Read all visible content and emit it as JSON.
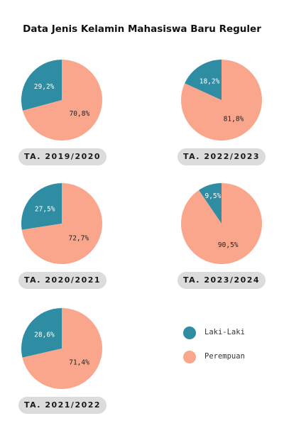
{
  "chart_data": {
    "type": "pie",
    "title": "Data Jenis Kelamin Mahasiswa Baru Reguler",
    "legend": {
      "placement": "bottom-right",
      "items": [
        {
          "name": "Laki-Laki",
          "color": "#2e8da3"
        },
        {
          "name": "Perempuan",
          "color": "#f9a68c"
        }
      ]
    },
    "charts": [
      {
        "label": "TA. 2019/2020",
        "slices": [
          {
            "name": "Laki-Laki",
            "value": 29.2,
            "text": "29,2%"
          },
          {
            "name": "Perempuan",
            "value": 70.8,
            "text": "70,8%"
          }
        ]
      },
      {
        "label": "TA. 2022/2023",
        "slices": [
          {
            "name": "Laki-Laki",
            "value": 18.2,
            "text": "18,2%"
          },
          {
            "name": "Perempuan",
            "value": 81.8,
            "text": "81,8%"
          }
        ]
      },
      {
        "label": "TA. 2020/2021",
        "slices": [
          {
            "name": "Laki-Laki",
            "value": 27.5,
            "text": "27,5%"
          },
          {
            "name": "Perempuan",
            "value": 72.7,
            "text": "72,7%"
          }
        ]
      },
      {
        "label": "TA. 2023/2024",
        "slices": [
          {
            "name": "Laki-Laki",
            "value": 9.5,
            "text": "9,5%"
          },
          {
            "name": "Perempuan",
            "value": 90.5,
            "text": "90,5%"
          }
        ]
      },
      {
        "label": "TA. 2021/2022",
        "slices": [
          {
            "name": "Laki-Laki",
            "value": 28.6,
            "text": "28,6%"
          },
          {
            "name": "Perempuan",
            "value": 71.4,
            "text": "71,4%"
          }
        ]
      }
    ]
  }
}
